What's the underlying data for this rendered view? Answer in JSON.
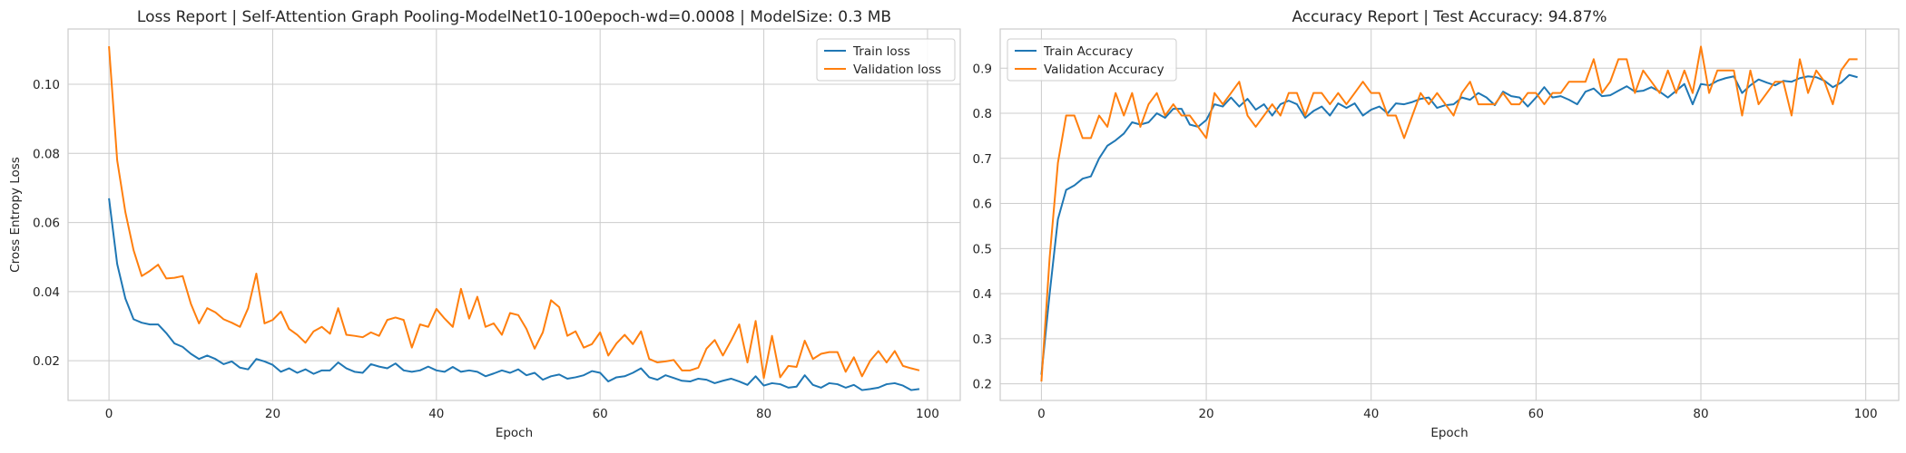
{
  "chart_data": [
    {
      "type": "line",
      "title": "Loss Report | Self-Attention Graph Pooling-ModelNet10-100epoch-wd=0.0008 | ModelSize: 0.3 MB",
      "xlabel": "Epoch",
      "ylabel": "Cross Entropy Loss",
      "xlim": [
        -5,
        104
      ],
      "ylim": [
        0.0085,
        0.116
      ],
      "xticks": [
        0,
        20,
        40,
        60,
        80,
        100
      ],
      "yticks": [
        0.02,
        0.04,
        0.06,
        0.08,
        0.1
      ],
      "ytick_labels": [
        "0.02",
        "0.04",
        "0.06",
        "0.08",
        "0.10"
      ],
      "grid": true,
      "legend": "top-right",
      "series": [
        {
          "name": "Train loss",
          "color": "#1f77b4",
          "values": [
            0.067,
            0.048,
            0.038,
            0.032,
            0.031,
            0.0305,
            0.0305,
            0.028,
            0.025,
            0.024,
            0.022,
            0.0205,
            0.0215,
            0.0205,
            0.019,
            0.0198,
            0.018,
            0.0175,
            0.0205,
            0.0198,
            0.0188,
            0.0168,
            0.0178,
            0.0165,
            0.0175,
            0.0162,
            0.0172,
            0.0172,
            0.0195,
            0.0178,
            0.0168,
            0.0165,
            0.019,
            0.0183,
            0.0178,
            0.0192,
            0.0172,
            0.0168,
            0.0172,
            0.0183,
            0.0172,
            0.0168,
            0.0182,
            0.0168,
            0.0172,
            0.0168,
            0.0155,
            0.0163,
            0.0172,
            0.0165,
            0.0175,
            0.0158,
            0.0165,
            0.0145,
            0.0155,
            0.016,
            0.0148,
            0.0152,
            0.0158,
            0.017,
            0.0165,
            0.014,
            0.0152,
            0.0155,
            0.0165,
            0.0178,
            0.0152,
            0.0145,
            0.0158,
            0.015,
            0.0142,
            0.014,
            0.0148,
            0.0145,
            0.0135,
            0.0142,
            0.0148,
            0.014,
            0.013,
            0.0155,
            0.0128,
            0.0135,
            0.0132,
            0.0122,
            0.0125,
            0.0158,
            0.013,
            0.0122,
            0.0135,
            0.0132,
            0.0122,
            0.013,
            0.0115,
            0.0118,
            0.0122,
            0.0132,
            0.0135,
            0.0128,
            0.0115,
            0.0118
          ]
        },
        {
          "name": "Validation loss",
          "color": "#ff7f0e",
          "values": [
            0.111,
            0.078,
            0.063,
            0.052,
            0.0445,
            0.046,
            0.0478,
            0.0438,
            0.044,
            0.0445,
            0.0365,
            0.0308,
            0.0352,
            0.034,
            0.032,
            0.031,
            0.0298,
            0.0352,
            0.0452,
            0.0308,
            0.0318,
            0.0342,
            0.0292,
            0.0275,
            0.0252,
            0.0285,
            0.0298,
            0.0278,
            0.0352,
            0.0275,
            0.0272,
            0.0268,
            0.0282,
            0.0272,
            0.0318,
            0.0325,
            0.0318,
            0.0238,
            0.0305,
            0.0298,
            0.035,
            0.0322,
            0.0298,
            0.0408,
            0.0322,
            0.0385,
            0.0298,
            0.0308,
            0.0275,
            0.0338,
            0.0332,
            0.0292,
            0.0235,
            0.0282,
            0.0375,
            0.0355,
            0.0272,
            0.0285,
            0.0238,
            0.0248,
            0.0282,
            0.0215,
            0.025,
            0.0275,
            0.0248,
            0.0285,
            0.0205,
            0.0195,
            0.0198,
            0.0202,
            0.0172,
            0.0172,
            0.018,
            0.0235,
            0.026,
            0.0215,
            0.0258,
            0.0305,
            0.0195,
            0.0315,
            0.015,
            0.0272,
            0.0152,
            0.0185,
            0.0182,
            0.0258,
            0.0205,
            0.022,
            0.0225,
            0.0225,
            0.0168,
            0.021,
            0.0155,
            0.02,
            0.0228,
            0.0195,
            0.0228,
            0.0185,
            0.0178,
            0.0172
          ]
        }
      ]
    },
    {
      "type": "line",
      "title": "Accuracy Report | Test Accuracy: 94.87%",
      "xlabel": "Epoch",
      "ylabel": "",
      "xlim": [
        -5,
        104
      ],
      "ylim": [
        0.163,
        0.987
      ],
      "xticks": [
        0,
        20,
        40,
        60,
        80,
        100
      ],
      "yticks": [
        0.2,
        0.3,
        0.4,
        0.5,
        0.6,
        0.7,
        0.8,
        0.9
      ],
      "ytick_labels": [
        "0.2",
        "0.3",
        "0.4",
        "0.5",
        "0.6",
        "0.7",
        "0.8",
        "0.9"
      ],
      "grid": true,
      "legend": "top-left",
      "series": [
        {
          "name": "Train Accuracy",
          "color": "#1f77b4",
          "values": [
            0.22,
            0.4,
            0.565,
            0.63,
            0.64,
            0.655,
            0.66,
            0.7,
            0.728,
            0.74,
            0.755,
            0.78,
            0.775,
            0.78,
            0.8,
            0.79,
            0.81,
            0.81,
            0.775,
            0.77,
            0.785,
            0.82,
            0.815,
            0.835,
            0.815,
            0.832,
            0.808,
            0.82,
            0.795,
            0.82,
            0.828,
            0.82,
            0.79,
            0.805,
            0.815,
            0.795,
            0.822,
            0.812,
            0.822,
            0.795,
            0.808,
            0.815,
            0.8,
            0.822,
            0.82,
            0.825,
            0.832,
            0.835,
            0.812,
            0.818,
            0.82,
            0.835,
            0.83,
            0.845,
            0.835,
            0.818,
            0.848,
            0.838,
            0.835,
            0.815,
            0.835,
            0.858,
            0.835,
            0.838,
            0.83,
            0.82,
            0.848,
            0.855,
            0.838,
            0.84,
            0.85,
            0.86,
            0.848,
            0.85,
            0.858,
            0.848,
            0.835,
            0.85,
            0.865,
            0.82,
            0.865,
            0.862,
            0.872,
            0.878,
            0.882,
            0.845,
            0.862,
            0.875,
            0.868,
            0.862,
            0.872,
            0.87,
            0.878,
            0.882,
            0.88,
            0.872,
            0.858,
            0.868,
            0.885,
            0.88
          ]
        },
        {
          "name": "Validation Accuracy",
          "color": "#ff7f0e",
          "values": [
            0.205,
            0.48,
            0.69,
            0.795,
            0.795,
            0.745,
            0.745,
            0.795,
            0.77,
            0.845,
            0.795,
            0.845,
            0.77,
            0.82,
            0.845,
            0.795,
            0.82,
            0.795,
            0.795,
            0.77,
            0.745,
            0.845,
            0.82,
            0.845,
            0.87,
            0.795,
            0.77,
            0.795,
            0.82,
            0.795,
            0.845,
            0.845,
            0.795,
            0.845,
            0.845,
            0.82,
            0.845,
            0.82,
            0.845,
            0.87,
            0.845,
            0.845,
            0.795,
            0.795,
            0.745,
            0.795,
            0.845,
            0.82,
            0.845,
            0.82,
            0.795,
            0.845,
            0.87,
            0.82,
            0.82,
            0.82,
            0.845,
            0.82,
            0.82,
            0.845,
            0.845,
            0.82,
            0.845,
            0.845,
            0.87,
            0.87,
            0.87,
            0.92,
            0.845,
            0.87,
            0.92,
            0.92,
            0.845,
            0.895,
            0.87,
            0.845,
            0.895,
            0.845,
            0.895,
            0.845,
            0.948,
            0.845,
            0.895,
            0.895,
            0.895,
            0.795,
            0.895,
            0.82,
            0.845,
            0.87,
            0.87,
            0.795,
            0.92,
            0.845,
            0.895,
            0.87,
            0.82,
            0.895,
            0.92,
            0.92
          ]
        }
      ]
    }
  ]
}
